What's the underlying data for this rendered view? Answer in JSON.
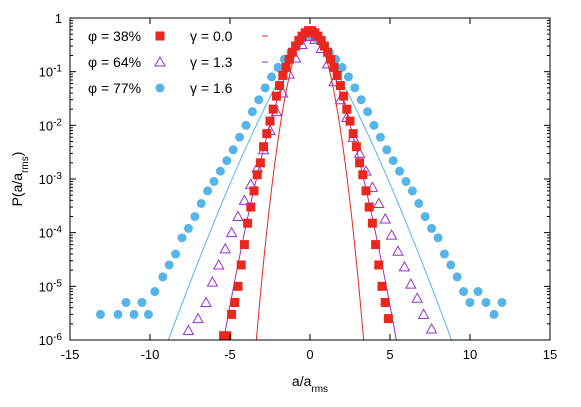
{
  "chart_data": {
    "type": "scatter",
    "xlabel_base": "a/a",
    "xlabel_sub": "rms",
    "ylabel_prefix": "P(a/a",
    "ylabel_sub": "rms",
    "ylabel_suffix": ")",
    "xlim": [
      -15,
      15
    ],
    "ylim": [
      1e-06,
      1
    ],
    "yscale": "log",
    "grid": false,
    "legend_position": "top-left",
    "x_ticks": [
      "-15",
      "-10",
      "-5",
      "0",
      "5",
      "10",
      "15"
    ],
    "y_ticks": [
      {
        "value": 1,
        "base": "1",
        "exp": ""
      },
      {
        "value": 0.1,
        "base": "10",
        "exp": "-1"
      },
      {
        "value": 0.01,
        "base": "10",
        "exp": "-2"
      },
      {
        "value": 0.001,
        "base": "10",
        "exp": "-3"
      },
      {
        "value": 0.0001,
        "base": "10",
        "exp": "-4"
      },
      {
        "value": 1e-05,
        "base": "10",
        "exp": "-5"
      },
      {
        "value": 1e-06,
        "base": "10",
        "exp": "-6"
      }
    ],
    "series": [
      {
        "name": "φ = 38%",
        "marker": "square",
        "color": "#e8281e",
        "fit_label": "γ = 0.0",
        "fit": {
          "type": "gaussian",
          "sigma": 0.65,
          "amp": 0.6,
          "xmin": -5.6,
          "xmax": 5.6
        },
        "x": [
          -5.4,
          -5.2,
          -4.9,
          -4.7,
          -4.5,
          -4.3,
          -4.1,
          -3.9,
          -3.7,
          -3.5,
          -3.3,
          -3.1,
          -2.9,
          -2.7,
          -2.5,
          -2.3,
          -2.1,
          -1.9,
          -1.7,
          -1.5,
          -1.3,
          -1.1,
          -0.9,
          -0.7,
          -0.5,
          -0.3,
          -0.1,
          0.1,
          0.3,
          0.5,
          0.7,
          0.9,
          1.1,
          1.3,
          1.5,
          1.7,
          1.9,
          2.1,
          2.3,
          2.5,
          2.7,
          2.9,
          3.1,
          3.3,
          3.5,
          3.7,
          3.9,
          4.1,
          4.3,
          4.5,
          4.7,
          4.9
        ],
        "y": [
          1.2e-06,
          1.2e-06,
          3e-06,
          5e-06,
          1e-05,
          2.5e-05,
          6e-05,
          0.00015,
          0.0003,
          0.0006,
          0.0012,
          0.002,
          0.004,
          0.007,
          0.012,
          0.02,
          0.035,
          0.055,
          0.085,
          0.12,
          0.17,
          0.23,
          0.3,
          0.38,
          0.46,
          0.53,
          0.58,
          0.58,
          0.53,
          0.46,
          0.38,
          0.3,
          0.23,
          0.17,
          0.12,
          0.085,
          0.055,
          0.035,
          0.02,
          0.012,
          0.007,
          0.004,
          0.002,
          0.0012,
          0.0006,
          0.0003,
          0.00015,
          6e-05,
          2.5e-05,
          1e-05,
          5e-06,
          2.5e-06
        ]
      },
      {
        "name": "φ = 64%",
        "marker": "triangle",
        "color": "#9a2fd0",
        "fit_label": "γ = 1.3",
        "fit": {
          "type": "stretched",
          "sigma": 0.72,
          "gamma": 1.3,
          "amp": 0.6,
          "xmin": -8.2,
          "xmax": 8.2
        },
        "x": [
          -7.6,
          -7.0,
          -6.5,
          -6.1,
          -5.7,
          -5.3,
          -4.9,
          -4.5,
          -4.1,
          -3.7,
          -3.3,
          -2.9,
          -2.5,
          -2.1,
          -1.7,
          -1.3,
          -0.9,
          -0.5,
          -0.1,
          0.3,
          0.7,
          1.1,
          1.5,
          1.9,
          2.3,
          2.7,
          3.1,
          3.5,
          3.9,
          4.3,
          4.7,
          5.1,
          5.5,
          5.9,
          6.3,
          6.7,
          7.1,
          7.6
        ],
        "y": [
          1.5e-06,
          2.5e-06,
          5e-06,
          1.2e-05,
          2.5e-05,
          5e-05,
          0.0001,
          0.0002,
          0.0004,
          0.0008,
          0.0016,
          0.0035,
          0.008,
          0.018,
          0.04,
          0.09,
          0.18,
          0.32,
          0.45,
          0.4,
          0.27,
          0.14,
          0.065,
          0.03,
          0.014,
          0.006,
          0.003,
          0.0014,
          0.0007,
          0.00035,
          0.00018,
          9e-05,
          4.5e-05,
          2.3e-05,
          1.1e-05,
          6e-06,
          3e-06,
          1.6e-06
        ]
      },
      {
        "name": "φ = 77%",
        "marker": "circle",
        "color": "#56b4e9",
        "fit_label": "γ = 1.6",
        "fit": {
          "type": "stretched",
          "sigma": 0.75,
          "gamma": 1.6,
          "amp": 0.5,
          "xmin": -12.5,
          "xmax": 12.5
        },
        "x": [
          -13.1,
          -12.0,
          -11.5,
          -11.0,
          -10.5,
          -10.1,
          -9.7,
          -9.2,
          -8.8,
          -8.4,
          -8.0,
          -7.6,
          -7.2,
          -6.8,
          -6.4,
          -6.0,
          -5.6,
          -5.2,
          -4.8,
          -4.4,
          -4.0,
          -3.6,
          -3.2,
          -2.8,
          -2.4,
          -2.0,
          -1.6,
          -1.2,
          -0.8,
          -0.4,
          0.0,
          0.4,
          0.8,
          1.2,
          1.6,
          2.0,
          2.4,
          2.8,
          3.2,
          3.6,
          4.0,
          4.4,
          4.8,
          5.2,
          5.6,
          6.0,
          6.4,
          6.8,
          7.2,
          7.6,
          8.0,
          8.4,
          8.8,
          9.2,
          9.6,
          10.0,
          10.5,
          11.0,
          11.5,
          12.0
        ],
        "y": [
          3e-06,
          3e-06,
          5e-06,
          3e-06,
          5e-06,
          3e-06,
          8e-06,
          1.5e-05,
          2.5e-05,
          4e-05,
          8e-05,
          0.00012,
          0.0002,
          0.00035,
          0.0006,
          0.0009,
          0.0014,
          0.0022,
          0.0035,
          0.006,
          0.01,
          0.018,
          0.03,
          0.05,
          0.08,
          0.12,
          0.17,
          0.23,
          0.32,
          0.42,
          0.47,
          0.42,
          0.32,
          0.23,
          0.17,
          0.12,
          0.08,
          0.05,
          0.03,
          0.018,
          0.01,
          0.006,
          0.0035,
          0.0022,
          0.0014,
          0.0009,
          0.0006,
          0.00035,
          0.0002,
          0.00012,
          8e-05,
          4e-05,
          2.5e-05,
          1.5e-05,
          8e-06,
          5e-06,
          8e-06,
          5e-06,
          3e-06,
          5e-06
        ]
      }
    ]
  }
}
